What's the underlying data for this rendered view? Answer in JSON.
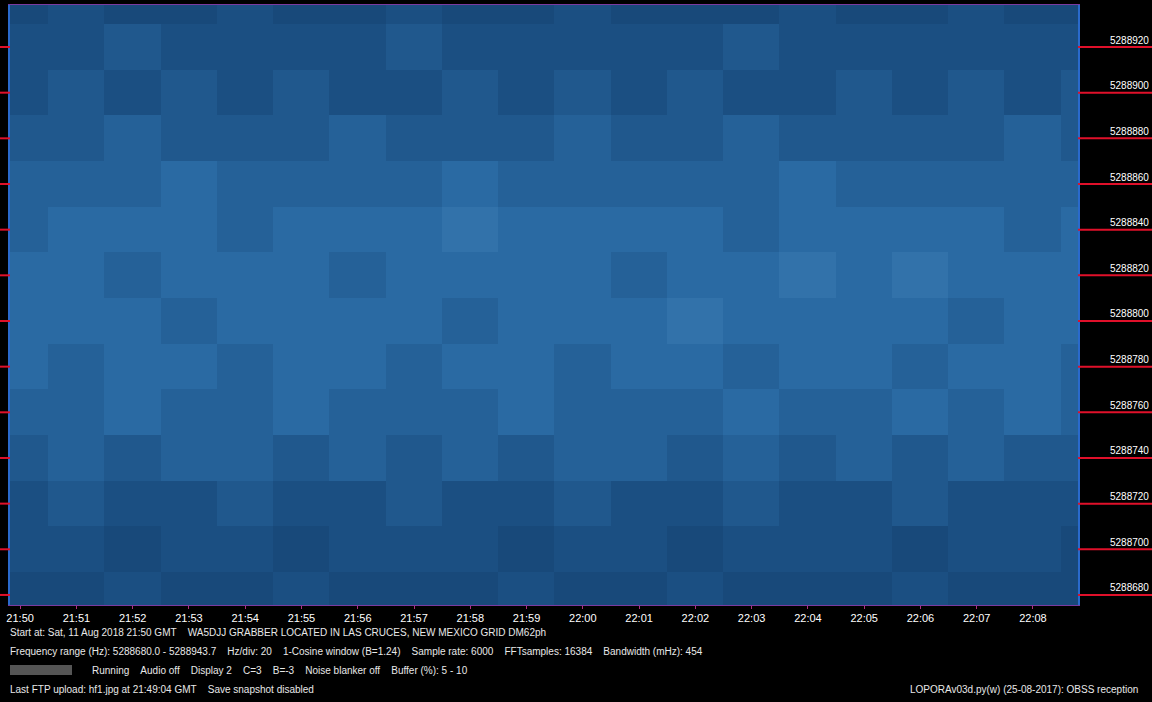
{
  "chart_data": {
    "type": "heatmap",
    "grid": false,
    "x": [
      0,
      1,
      2,
      3,
      4,
      5,
      6,
      7,
      8,
      9,
      10,
      11,
      12,
      13,
      14,
      15,
      16,
      17,
      18,
      19
    ],
    "y": [
      5288680,
      5288700,
      5288720,
      5288740,
      5288760,
      5288780,
      5288800,
      5288820,
      5288840,
      5288860,
      5288880,
      5288900,
      5288920,
      5288940
    ],
    "z": [
      [
        2,
        2,
        3,
        2,
        2,
        3,
        2,
        2,
        2,
        3,
        2,
        2,
        3,
        2,
        2,
        2,
        3,
        2,
        2,
        2
      ],
      [
        3,
        3,
        2,
        3,
        3,
        2,
        3,
        3,
        3,
        2,
        3,
        3,
        2,
        3,
        3,
        3,
        2,
        3,
        3,
        2
      ],
      [
        3,
        4,
        3,
        3,
        4,
        3,
        3,
        4,
        3,
        3,
        4,
        3,
        3,
        4,
        3,
        3,
        4,
        3,
        3,
        3
      ],
      [
        4,
        5,
        4,
        5,
        5,
        4,
        5,
        4,
        5,
        4,
        5,
        5,
        4,
        5,
        4,
        5,
        4,
        5,
        4,
        4
      ],
      [
        5,
        5,
        6,
        5,
        5,
        6,
        5,
        5,
        5,
        6,
        5,
        5,
        5,
        6,
        5,
        5,
        6,
        5,
        6,
        5
      ],
      [
        6,
        5,
        6,
        6,
        5,
        6,
        6,
        5,
        6,
        6,
        5,
        6,
        6,
        5,
        6,
        6,
        5,
        6,
        6,
        5
      ],
      [
        6,
        6,
        6,
        5,
        6,
        6,
        6,
        6,
        5,
        6,
        6,
        6,
        7,
        6,
        6,
        6,
        6,
        5,
        6,
        6
      ],
      [
        6,
        6,
        5,
        6,
        6,
        6,
        5,
        6,
        6,
        6,
        6,
        5,
        6,
        6,
        7,
        6,
        7,
        6,
        6,
        6
      ],
      [
        5,
        6,
        6,
        6,
        5,
        6,
        6,
        6,
        7,
        6,
        6,
        6,
        6,
        5,
        6,
        6,
        6,
        6,
        5,
        6
      ],
      [
        5,
        5,
        5,
        6,
        5,
        5,
        5,
        5,
        6,
        5,
        5,
        5,
        5,
        5,
        6,
        5,
        5,
        5,
        5,
        5
      ],
      [
        4,
        4,
        5,
        4,
        4,
        4,
        5,
        4,
        4,
        4,
        5,
        4,
        4,
        5,
        4,
        4,
        4,
        4,
        5,
        4
      ],
      [
        3,
        4,
        3,
        4,
        3,
        4,
        3,
        3,
        4,
        3,
        4,
        3,
        4,
        3,
        3,
        4,
        3,
        4,
        3,
        4
      ],
      [
        3,
        3,
        4,
        3,
        3,
        3,
        3,
        4,
        3,
        3,
        3,
        3,
        3,
        4,
        3,
        3,
        3,
        3,
        3,
        3
      ],
      [
        2,
        3,
        2,
        2,
        3,
        2,
        2,
        3,
        2,
        2,
        3,
        2,
        2,
        2,
        3,
        2,
        2,
        3,
        2,
        2
      ]
    ],
    "zlim": [
      0,
      10
    ],
    "xlim": [
      -0.18,
      18.8
    ],
    "xticks": [
      {
        "value": 0,
        "label": "21:50"
      },
      {
        "value": 1,
        "label": "21:51"
      },
      {
        "value": 2,
        "label": "21:52"
      },
      {
        "value": 3,
        "label": "21:53"
      },
      {
        "value": 4,
        "label": "21:54"
      },
      {
        "value": 5,
        "label": "21:55"
      },
      {
        "value": 6,
        "label": "21:56"
      },
      {
        "value": 7,
        "label": "21:57"
      },
      {
        "value": 8,
        "label": "21:58"
      },
      {
        "value": 9,
        "label": "21:59"
      },
      {
        "value": 10,
        "label": "22:00"
      },
      {
        "value": 11,
        "label": "22:01"
      },
      {
        "value": 12,
        "label": "22:02"
      },
      {
        "value": 13,
        "label": "22:03"
      },
      {
        "value": 14,
        "label": "22:04"
      },
      {
        "value": 15,
        "label": "22:05"
      },
      {
        "value": 16,
        "label": "22:06"
      },
      {
        "value": 17,
        "label": "22:07"
      },
      {
        "value": 18,
        "label": "22:08"
      }
    ],
    "ylim": [
      5288675.6,
      5288938.4
    ],
    "yticks": [
      5288680,
      5288700,
      5288720,
      5288740,
      5288760,
      5288780,
      5288800,
      5288820,
      5288840,
      5288860,
      5288880,
      5288900,
      5288920
    ],
    "annotations": [
      "Start at: Sat, 11 Aug 2018 21:50 GMT    WA5DJJ GRABBER LOCATED IN LAS CRUCES, NEW MEXICO GRID DM62ph",
      "Frequency range (Hz): 5288680.0 - 5288943.7    Hz/div: 20    1-Cosine window (B=1.24)    Sample rate: 6000    FFTsamples: 16384    Bandwidth (mHz): 454",
      "Running    Audio off    Display 2    C=3    B=-3    Noise blanker off    Buffer (%): 5 - 10",
      "Last FTP upload: hf1.jpg at 21:49:04 GMT    Save snapshot disabled",
      "LOPORAv03d.py(w) (25-08-2017): OBSS reception"
    ]
  }
}
